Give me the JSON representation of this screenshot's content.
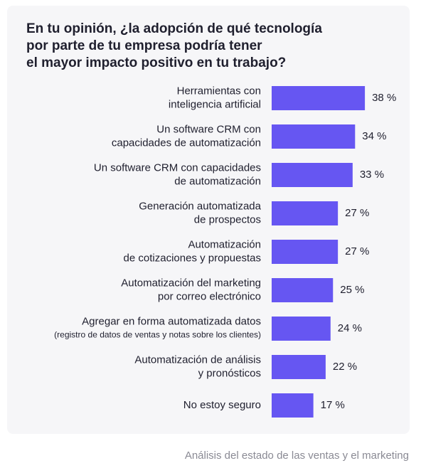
{
  "chart_data": {
    "type": "bar",
    "orientation": "horizontal",
    "title": [
      "En tu opinión, ¿la adopción de qué tecnología",
      "por parte de tu empresa podría tener",
      "el mayor impacto positivo en tu trabajo?"
    ],
    "categories": [
      [
        "Herramientas con",
        "inteligencia artificial"
      ],
      [
        "Un software CRM con",
        "capacidades de automatización"
      ],
      [
        "Un software CRM con capacidades",
        "de automatización"
      ],
      [
        "Generación automatizada",
        "de prospectos"
      ],
      [
        "Automatización",
        "de cotizaciones y propuestas"
      ],
      [
        "Automatización del marketing",
        "por correo electrónico"
      ],
      [
        "Agregar en forma automatizada datos",
        "(registro de datos de ventas y notas sobre los clientes)"
      ],
      [
        "Automatización de análisis",
        "y pronósticos"
      ],
      [
        "No estoy seguro"
      ]
    ],
    "values": [
      38,
      34,
      33,
      27,
      27,
      25,
      24,
      22,
      17
    ],
    "value_labels": [
      "38 %",
      "34 %",
      "33 %",
      "27 %",
      "27 %",
      "25 %",
      "24 %",
      "22 %",
      "17 %"
    ],
    "color": "#6656f2",
    "source": "Análisis del estado de las ventas y el marketing"
  }
}
